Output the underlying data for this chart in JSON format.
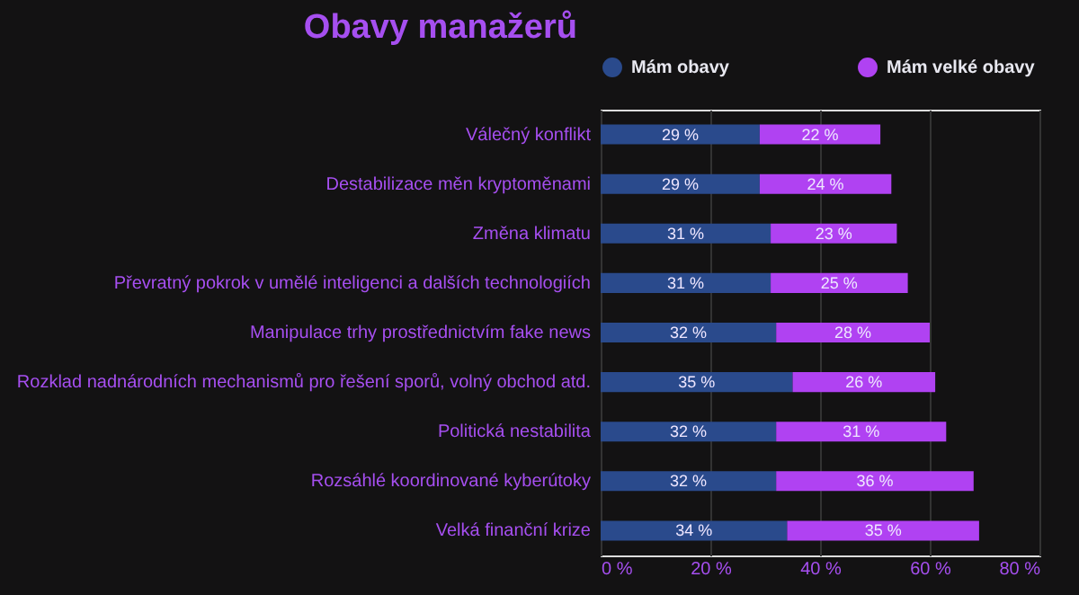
{
  "chart_data": {
    "type": "bar",
    "orientation": "horizontal",
    "stacked": true,
    "title": "Obavy manažerů",
    "categories": [
      "Válečný konflikt",
      "Destabilizace měn kryptoměnami",
      "Změna klimatu",
      "Převratný pokrok v umělé inteligenci a dalších technologiích",
      "Manipulace trhy prostřednictvím fake news",
      "Rozklad nadnárodních mechanismů pro řešení sporů, volný obchod atd.",
      "Politická nestabilita",
      "Rozsáhlé koordinované kyberútoky",
      "Velká finanční krize"
    ],
    "series": [
      {
        "name": "Mám obavy",
        "color": "#2a4a8c",
        "values": [
          29,
          29,
          31,
          31,
          32,
          35,
          32,
          32,
          34
        ],
        "value_labels": [
          "29 %",
          "29 %",
          "31 %",
          "31 %",
          "32 %",
          "35 %",
          "32 %",
          "32 %",
          "34 %"
        ]
      },
      {
        "name": "Mám velké obavy",
        "color": "#b042f2",
        "values": [
          22,
          24,
          23,
          25,
          28,
          26,
          31,
          36,
          35
        ],
        "value_labels": [
          "22 %",
          "24 %",
          "23 %",
          "25 %",
          "28 %",
          "26 %",
          "31 %",
          "36 %",
          "35 %"
        ]
      }
    ],
    "xlim": [
      0,
      80
    ],
    "xticks": [
      {
        "value": 0,
        "label": "0 %"
      },
      {
        "value": 20,
        "label": "20 %"
      },
      {
        "value": 40,
        "label": "40 %"
      },
      {
        "value": 60,
        "label": "60 %"
      },
      {
        "value": 80,
        "label": "80 %"
      }
    ],
    "grid": "x",
    "legend": "top"
  }
}
